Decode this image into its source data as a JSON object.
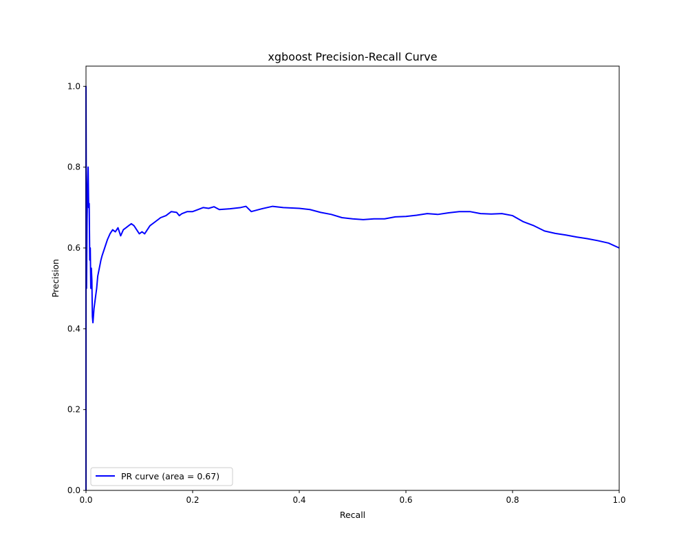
{
  "chart_data": {
    "type": "line",
    "title": "xgboost Precision-Recall Curve",
    "xlabel": "Recall",
    "ylabel": "Precision",
    "xlim": [
      0.0,
      1.0
    ],
    "ylim": [
      0.0,
      1.05
    ],
    "xticks": [
      "0.0",
      "0.2",
      "0.4",
      "0.6",
      "0.8",
      "1.0"
    ],
    "yticks": [
      "0.0",
      "0.2",
      "0.4",
      "0.6",
      "0.8",
      "1.0"
    ],
    "grid": false,
    "legend_position": "lower-left",
    "series": [
      {
        "name": "PR curve (area = 0.67)",
        "color": "#0000ff",
        "points": [
          [
            0.0,
            0.0
          ],
          [
            0.0,
            1.0
          ],
          [
            0.001,
            0.5
          ],
          [
            0.002,
            0.67
          ],
          [
            0.003,
            0.75
          ],
          [
            0.004,
            0.8
          ],
          [
            0.005,
            0.7
          ],
          [
            0.006,
            0.71
          ],
          [
            0.007,
            0.57
          ],
          [
            0.008,
            0.6
          ],
          [
            0.009,
            0.5
          ],
          [
            0.01,
            0.55
          ],
          [
            0.011,
            0.52
          ],
          [
            0.012,
            0.43
          ],
          [
            0.013,
            0.415
          ],
          [
            0.015,
            0.45
          ],
          [
            0.018,
            0.48
          ],
          [
            0.02,
            0.5
          ],
          [
            0.022,
            0.53
          ],
          [
            0.025,
            0.55
          ],
          [
            0.028,
            0.57
          ],
          [
            0.03,
            0.58
          ],
          [
            0.035,
            0.6
          ],
          [
            0.04,
            0.62
          ],
          [
            0.045,
            0.635
          ],
          [
            0.05,
            0.645
          ],
          [
            0.055,
            0.64
          ],
          [
            0.06,
            0.65
          ],
          [
            0.065,
            0.63
          ],
          [
            0.07,
            0.645
          ],
          [
            0.075,
            0.65
          ],
          [
            0.08,
            0.655
          ],
          [
            0.085,
            0.66
          ],
          [
            0.09,
            0.655
          ],
          [
            0.095,
            0.645
          ],
          [
            0.1,
            0.635
          ],
          [
            0.105,
            0.64
          ],
          [
            0.11,
            0.635
          ],
          [
            0.12,
            0.655
          ],
          [
            0.13,
            0.665
          ],
          [
            0.14,
            0.675
          ],
          [
            0.15,
            0.68
          ],
          [
            0.16,
            0.69
          ],
          [
            0.17,
            0.688
          ],
          [
            0.175,
            0.68
          ],
          [
            0.18,
            0.685
          ],
          [
            0.19,
            0.69
          ],
          [
            0.2,
            0.69
          ],
          [
            0.21,
            0.695
          ],
          [
            0.22,
            0.7
          ],
          [
            0.23,
            0.698
          ],
          [
            0.24,
            0.702
          ],
          [
            0.25,
            0.695
          ],
          [
            0.27,
            0.697
          ],
          [
            0.29,
            0.7
          ],
          [
            0.3,
            0.703
          ],
          [
            0.31,
            0.69
          ],
          [
            0.33,
            0.697
          ],
          [
            0.35,
            0.703
          ],
          [
            0.37,
            0.7
          ],
          [
            0.4,
            0.698
          ],
          [
            0.42,
            0.695
          ],
          [
            0.44,
            0.688
          ],
          [
            0.46,
            0.683
          ],
          [
            0.48,
            0.675
          ],
          [
            0.5,
            0.672
          ],
          [
            0.52,
            0.67
          ],
          [
            0.54,
            0.672
          ],
          [
            0.56,
            0.672
          ],
          [
            0.58,
            0.677
          ],
          [
            0.6,
            0.678
          ],
          [
            0.62,
            0.681
          ],
          [
            0.64,
            0.685
          ],
          [
            0.66,
            0.683
          ],
          [
            0.68,
            0.687
          ],
          [
            0.7,
            0.69
          ],
          [
            0.72,
            0.69
          ],
          [
            0.74,
            0.685
          ],
          [
            0.76,
            0.684
          ],
          [
            0.78,
            0.685
          ],
          [
            0.8,
            0.68
          ],
          [
            0.82,
            0.665
          ],
          [
            0.84,
            0.655
          ],
          [
            0.86,
            0.642
          ],
          [
            0.88,
            0.636
          ],
          [
            0.9,
            0.632
          ],
          [
            0.92,
            0.627
          ],
          [
            0.94,
            0.623
          ],
          [
            0.96,
            0.618
          ],
          [
            0.98,
            0.612
          ],
          [
            1.0,
            0.6
          ]
        ]
      }
    ]
  }
}
